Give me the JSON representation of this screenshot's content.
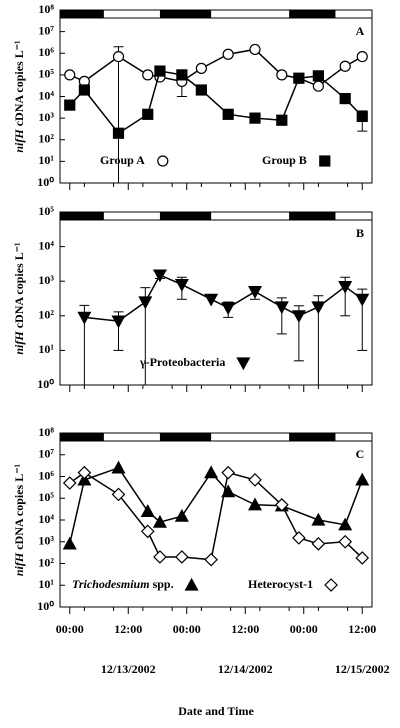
{
  "chart_data": [
    {
      "type": "line",
      "panel_label": "A",
      "ylabel": "nifH cDNA copies L⁻¹",
      "log_y": true,
      "xlim": [
        -2,
        62
      ],
      "ylim": [
        1,
        100000000
      ],
      "yticks": [
        {
          "value": 1,
          "label": "10⁰"
        },
        {
          "value": 10,
          "label": "10¹"
        },
        {
          "value": 100,
          "label": "10²"
        },
        {
          "value": 1000,
          "label": "10³"
        },
        {
          "value": 10000,
          "label": "10⁴"
        },
        {
          "value": 100000,
          "label": "10⁵"
        },
        {
          "value": 1000000,
          "label": "10⁶"
        },
        {
          "value": 10000000,
          "label": "10⁷"
        },
        {
          "value": 100000000,
          "label": "10⁸"
        }
      ],
      "dark_periods": [
        [
          -2,
          7
        ],
        [
          18.5,
          29
        ],
        [
          45,
          54.5
        ]
      ],
      "series": [
        {
          "name": "Group A",
          "marker": "circle",
          "color": "#000000",
          "fill": "#ffffff",
          "x": [
            0,
            3,
            10,
            16,
            18.5,
            23,
            27,
            32.5,
            38,
            43.5,
            47,
            51,
            56.5,
            60
          ],
          "values": [
            100000,
            50000,
            700000,
            100000,
            80000,
            50000,
            200000,
            900000,
            1500000,
            100000,
            70000,
            30000,
            250000,
            700000
          ],
          "errors": [
            0,
            0,
            1300000,
            0,
            0,
            40000,
            0,
            0,
            0,
            0,
            0,
            0,
            0,
            0
          ]
        },
        {
          "name": "Group B",
          "marker": "square",
          "color": "#000000",
          "fill": "#000000",
          "x": [
            0,
            3,
            10,
            16,
            18.5,
            23,
            27,
            32.5,
            38,
            43.5,
            47,
            51,
            56.5,
            60
          ],
          "values": [
            4000,
            20000,
            200,
            1500,
            150000,
            100000,
            20000,
            1500,
            1000,
            800,
            70000,
            90000,
            8000,
            1200
          ],
          "errors": [
            0,
            0,
            0,
            0,
            0,
            0,
            0,
            0,
            0,
            0,
            0,
            0,
            0,
            950
          ]
        }
      ]
    },
    {
      "type": "line",
      "panel_label": "B",
      "ylabel": "nifH cDNA copies L⁻¹",
      "log_y": true,
      "xlim": [
        -2,
        62
      ],
      "ylim": [
        1,
        100000
      ],
      "yticks": [
        {
          "value": 1,
          "label": "10⁰"
        },
        {
          "value": 10,
          "label": "10¹"
        },
        {
          "value": 100,
          "label": "10²"
        },
        {
          "value": 1000,
          "label": "10³"
        },
        {
          "value": 10000,
          "label": "10⁴"
        },
        {
          "value": 100000,
          "label": "10⁵"
        }
      ],
      "dark_periods": [
        [
          -2,
          7
        ],
        [
          18.5,
          29
        ],
        [
          45,
          54.5
        ]
      ],
      "series": [
        {
          "name": "γ-Proteobacteria",
          "marker": "triangle-down",
          "color": "#000000",
          "fill": "#000000",
          "x": [
            3,
            10,
            15.5,
            18.5,
            23,
            29,
            32.5,
            38,
            43.5,
            47,
            51,
            56.5,
            60
          ],
          "values": [
            90,
            70,
            250,
            1500,
            800,
            300,
            170,
            500,
            180,
            100,
            180,
            700,
            300
          ],
          "errors": [
            110,
            60,
            400,
            300,
            500,
            0,
            80,
            200,
            150,
            95,
            200,
            600,
            290
          ]
        }
      ]
    },
    {
      "type": "line",
      "panel_label": "C",
      "ylabel": "nifH cDNA copies L⁻¹",
      "log_y": true,
      "xlabel": "Date and Time",
      "xlim": [
        -2,
        62
      ],
      "ylim": [
        1,
        100000000
      ],
      "yticks": [
        {
          "value": 1,
          "label": "10⁰"
        },
        {
          "value": 10,
          "label": "10¹"
        },
        {
          "value": 100,
          "label": "10²"
        },
        {
          "value": 1000,
          "label": "10³"
        },
        {
          "value": 10000,
          "label": "10⁴"
        },
        {
          "value": 100000,
          "label": "10⁵"
        },
        {
          "value": 1000000,
          "label": "10⁶"
        },
        {
          "value": 10000000,
          "label": "10⁷"
        },
        {
          "value": 100000000,
          "label": "10⁸"
        }
      ],
      "xticks": [
        {
          "value": 0,
          "label": "00:00"
        },
        {
          "value": 12,
          "label": "12:00"
        },
        {
          "value": 24,
          "label": "00:00"
        },
        {
          "value": 36,
          "label": "12:00"
        },
        {
          "value": 48,
          "label": "00:00"
        },
        {
          "value": 60,
          "label": "12:00"
        }
      ],
      "date_labels": [
        {
          "value": 12,
          "label": "12/13/2002"
        },
        {
          "value": 36,
          "label": "12/14/2002"
        },
        {
          "value": 60,
          "label": "12/15/2002"
        }
      ],
      "dark_periods": [
        [
          -2,
          7
        ],
        [
          18.5,
          29
        ],
        [
          45,
          54.5
        ]
      ],
      "series": [
        {
          "name": "Trichodesmium spp.",
          "marker": "triangle",
          "color": "#000000",
          "fill": "#000000",
          "x": [
            0,
            3,
            10,
            16,
            18.5,
            23,
            29,
            32.5,
            38,
            43.5,
            51,
            56.5,
            60
          ],
          "values": [
            800,
            700000,
            2500000,
            25000,
            8000,
            15000,
            1500000,
            200000,
            50000,
            45000,
            10000,
            6000,
            700000
          ]
        },
        {
          "name": "Heterocyst-1",
          "marker": "diamond",
          "color": "#000000",
          "fill": "#ffffff",
          "x": [
            0,
            3,
            10,
            16,
            18.5,
            23,
            29,
            32.5,
            38,
            43.5,
            47,
            51,
            56.5,
            60
          ],
          "values": [
            500000,
            1500000,
            150000,
            3000,
            200,
            200,
            150,
            1500000,
            700000,
            50000,
            1500,
            800,
            1000,
            180
          ]
        }
      ]
    }
  ]
}
